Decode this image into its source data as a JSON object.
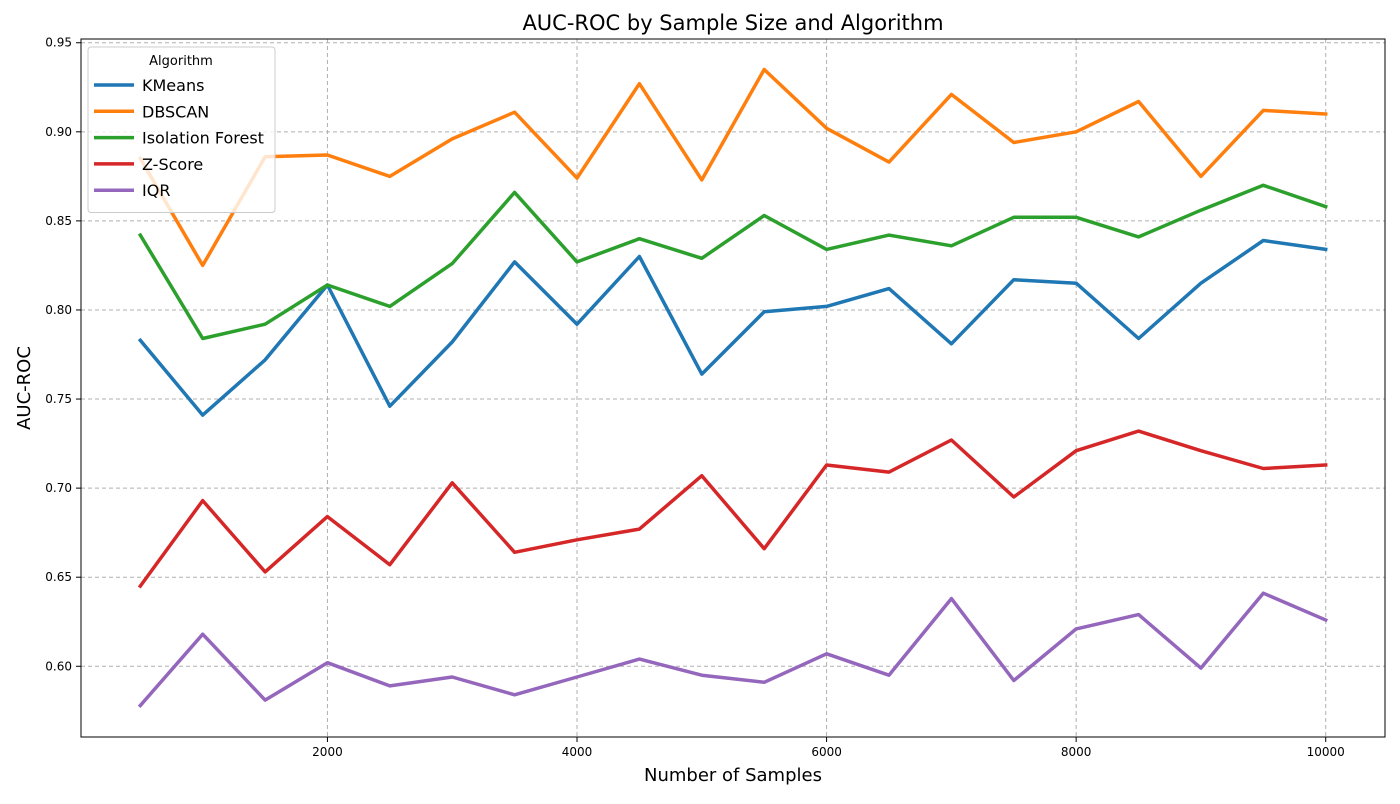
{
  "chart_data": {
    "type": "line",
    "title": "AUC-ROC by Sample Size and Algorithm",
    "xlabel": "Number of Samples",
    "ylabel": "AUC-ROC",
    "x": [
      500,
      1000,
      1500,
      2000,
      2500,
      3000,
      3500,
      4000,
      4500,
      5000,
      5500,
      6000,
      6500,
      7000,
      7500,
      8000,
      8500,
      9000,
      9500,
      10000
    ],
    "xlim": [
      25,
      10475
    ],
    "ylim": [
      0.5603,
      0.9521
    ],
    "xticks": [
      2000,
      4000,
      6000,
      8000,
      10000
    ],
    "xtick_labels": [
      "2000",
      "4000",
      "6000",
      "8000",
      "10000"
    ],
    "yticks": [
      0.6,
      0.65,
      0.7,
      0.75,
      0.8,
      0.85,
      0.9,
      0.95
    ],
    "ytick_labels": [
      "0.60",
      "0.65",
      "0.70",
      "0.75",
      "0.80",
      "0.85",
      "0.90",
      "0.95"
    ],
    "grid": true,
    "legend": {
      "title": "Algorithm",
      "placement": "top-left"
    },
    "series": [
      {
        "name": "KMeans",
        "color": "#1f77b4",
        "values": [
          0.783,
          0.741,
          0.772,
          0.814,
          0.746,
          0.782,
          0.827,
          0.792,
          0.83,
          0.764,
          0.799,
          0.802,
          0.812,
          0.781,
          0.817,
          0.815,
          0.784,
          0.815,
          0.839,
          0.834
        ]
      },
      {
        "name": "DBSCAN",
        "color": "#ff7f0e",
        "values": [
          0.885,
          0.825,
          0.886,
          0.887,
          0.875,
          0.896,
          0.911,
          0.874,
          0.927,
          0.873,
          0.935,
          0.902,
          0.883,
          0.921,
          0.894,
          0.9,
          0.917,
          0.875,
          0.912,
          0.91
        ]
      },
      {
        "name": "Isolation Forest",
        "color": "#2ca02c",
        "values": [
          0.842,
          0.784,
          0.792,
          0.814,
          0.802,
          0.826,
          0.866,
          0.827,
          0.84,
          0.829,
          0.853,
          0.834,
          0.842,
          0.836,
          0.852,
          0.852,
          0.841,
          0.856,
          0.87,
          0.858
        ]
      },
      {
        "name": "Z-Score",
        "color": "#d62728",
        "values": [
          0.645,
          0.693,
          0.653,
          0.684,
          0.657,
          0.703,
          0.664,
          0.671,
          0.677,
          0.707,
          0.666,
          0.713,
          0.709,
          0.727,
          0.695,
          0.721,
          0.732,
          0.721,
          0.711,
          0.713
        ]
      },
      {
        "name": "IQR",
        "color": "#9467bd",
        "values": [
          0.578,
          0.618,
          0.581,
          0.602,
          0.589,
          0.594,
          0.584,
          0.594,
          0.604,
          0.595,
          0.591,
          0.607,
          0.595,
          0.638,
          0.592,
          0.621,
          0.629,
          0.599,
          0.641,
          0.626
        ]
      }
    ]
  }
}
